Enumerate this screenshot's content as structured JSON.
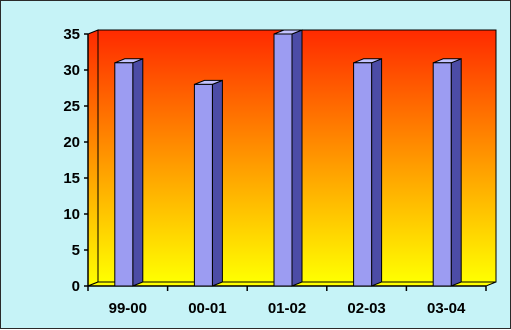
{
  "chart_data": {
    "type": "bar",
    "categories": [
      "99-00",
      "00-01",
      "01-02",
      "02-03",
      "03-04"
    ],
    "values": [
      31,
      28,
      35,
      31,
      31
    ],
    "ylim": [
      0,
      35
    ],
    "yticks": [
      0,
      5,
      10,
      15,
      20,
      25,
      30,
      35
    ],
    "grid": false,
    "legend": "none",
    "style": "3d-bars",
    "colors": {
      "bar_front": "#9c9cf2",
      "bar_side": "#4c4ca6",
      "bar_top": "#c4c4ff",
      "background_top": "#ff2a00",
      "background_bottom": "#ffff00",
      "frame": "#c6f3f7"
    }
  }
}
